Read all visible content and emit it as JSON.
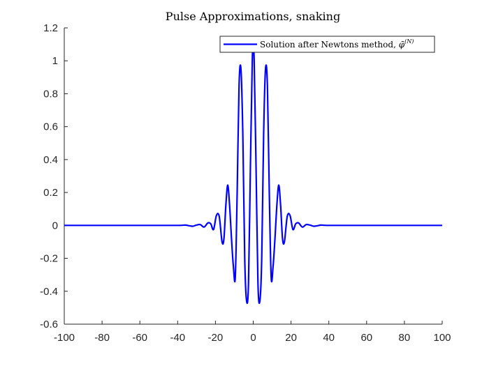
{
  "chart_data": {
    "type": "line",
    "title": "Pulse Approximations, snaking",
    "xlabel": "",
    "ylabel": "",
    "xlim": [
      -100,
      100
    ],
    "ylim": [
      -0.6,
      1.2
    ],
    "xticks": [
      -100,
      -80,
      -60,
      -40,
      -20,
      0,
      20,
      40,
      60,
      80,
      100
    ],
    "yticks": [
      -0.6,
      -0.4,
      -0.2,
      0,
      0.2,
      0.4,
      0.6,
      0.8,
      1,
      1.2
    ],
    "xtick_labels": [
      "-100",
      "-80",
      "-60",
      "-40",
      "-20",
      "0",
      "20",
      "40",
      "60",
      "80",
      "100"
    ],
    "ytick_labels": [
      "-0.6",
      "-0.4",
      "-0.2",
      "0",
      "0.2",
      "0.4",
      "0.6",
      "0.8",
      "1",
      "1.2"
    ],
    "grid": false,
    "legend": {
      "placement": "top-right",
      "label_text": "Solution after Newtons method, ",
      "label_symbol": "φ̄",
      "label_superscript": "(N)"
    },
    "series": [
      {
        "name": "Solution after Newtons method, φ̄^(N)",
        "color": "#0000ff",
        "x": [
          -100,
          -60,
          -40,
          -36,
          -34,
          -32,
          -30,
          -28,
          -26,
          -24,
          -22.5,
          -21,
          -19.5,
          -18,
          -16.5,
          -15.5,
          -14.5,
          -13.5,
          -12.5,
          -11.5,
          -10.5,
          -9.5,
          -8.5,
          -7.5,
          -6.5,
          -5.5,
          -4.5,
          -3.5,
          -2.5,
          -1.5,
          -0.5,
          0,
          0.5,
          1.5,
          2.5,
          3.5,
          4.5,
          5.5,
          6.5,
          7.5,
          8.5,
          9.5,
          10.5,
          11.5,
          12.5,
          13.5,
          14.5,
          15.5,
          16.5,
          18,
          19.5,
          21,
          22.5,
          24,
          26,
          28,
          30,
          32,
          34,
          36,
          40,
          60,
          100
        ],
        "y": [
          0,
          0,
          0,
          0.002,
          -0.002,
          -0.005,
          0.002,
          0.005,
          -0.01,
          0.015,
          0.01,
          -0.025,
          0.06,
          0.055,
          -0.1,
          -0.08,
          0.12,
          0.245,
          0.12,
          -0.08,
          -0.25,
          -0.315,
          0.2,
          0.85,
          0.95,
          0.55,
          -0.2,
          -0.46,
          -0.35,
          0.35,
          1.0,
          1.06,
          1.0,
          0.35,
          -0.35,
          -0.46,
          -0.2,
          0.55,
          0.95,
          0.85,
          0.2,
          -0.315,
          -0.25,
          -0.08,
          0.12,
          0.245,
          0.12,
          -0.08,
          -0.1,
          0.055,
          0.06,
          -0.025,
          0.01,
          0.015,
          -0.01,
          0.005,
          0.002,
          -0.005,
          -0.002,
          0.002,
          0,
          0,
          0
        ]
      }
    ]
  }
}
